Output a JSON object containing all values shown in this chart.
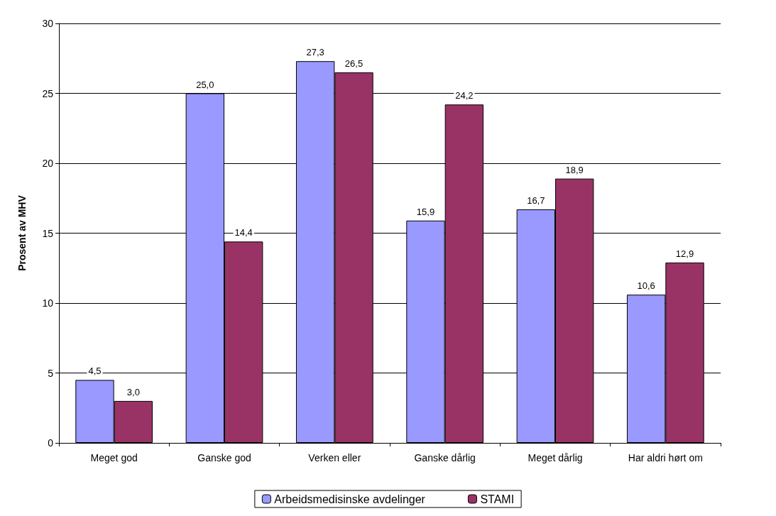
{
  "chart_data": {
    "type": "bar",
    "ylabel": "Prosent av MHV",
    "categories": [
      "Meget god",
      "Ganske god",
      "Verken eller",
      "Ganske dårlig",
      "Meget dårlig",
      "Har aldri hørt om"
    ],
    "series": [
      {
        "name": "Arbeidsmedisinske avdelinger",
        "color": "#9999ff",
        "values": [
          4.5,
          25.0,
          27.3,
          15.9,
          16.7,
          10.6
        ],
        "value_labels": [
          "4,5",
          "25,0",
          "27,3",
          "15,9",
          "16,7",
          "10,6"
        ]
      },
      {
        "name": "STAMI",
        "color": "#993366",
        "values": [
          3.0,
          14.4,
          26.5,
          24.2,
          18.9,
          12.9
        ],
        "value_labels": [
          "3,0",
          "14,4",
          "26,5",
          "24,2",
          "18,9",
          "12,9"
        ]
      }
    ],
    "ylim": [
      0,
      30
    ],
    "yticks": [
      0,
      5,
      10,
      15,
      20,
      25,
      30
    ],
    "grid": "y",
    "legend": "bottom"
  }
}
